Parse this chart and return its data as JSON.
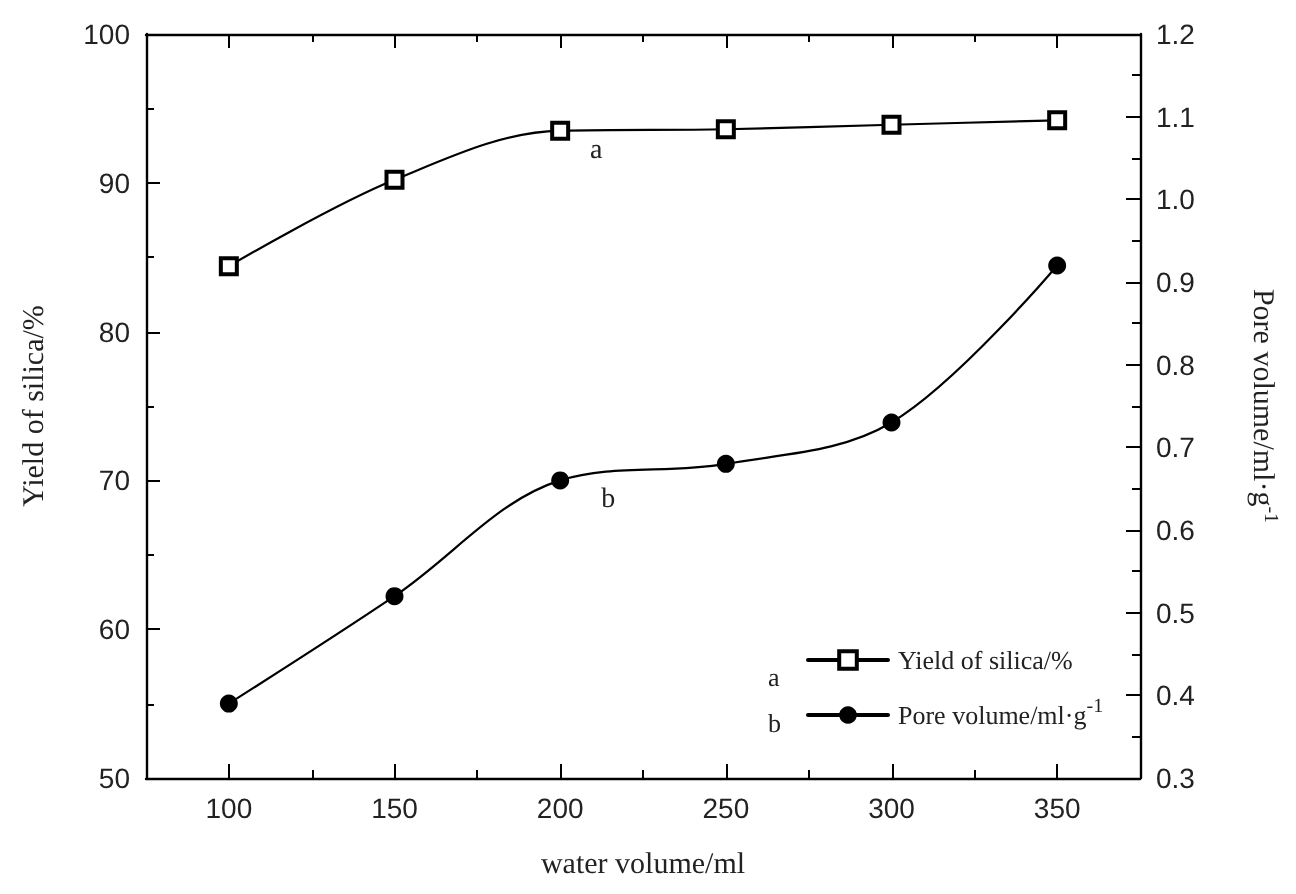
{
  "chart_data": {
    "type": "line",
    "xlabel": "water volume/ml",
    "ylabel": "Yield of silica/%",
    "y2label": "Pore volume/ml·g$^{-1}$",
    "x": [
      100,
      150,
      200,
      250,
      300,
      350
    ],
    "series": [
      {
        "name": "Yield of silica/%",
        "color": "#000000",
        "marker": "square",
        "values": [
          84.4,
          90.2,
          93.5,
          93.6,
          93.9,
          94.2
        ]
      },
      {
        "name": "Pore volume/ml·g$^{-1}$",
        "color": "#000000",
        "marker": "circle",
        "axis": "y2",
        "values": [
          0.39,
          0.52,
          0.66,
          0.68,
          0.73,
          0.92
        ]
      }
    ],
    "annotations": [
      "a",
      "b"
    ],
    "xlim": [
      75,
      375
    ],
    "xticks": [
      100,
      150,
      200,
      250,
      300,
      350
    ],
    "ylim": [
      50,
      100
    ],
    "yticks": [
      50,
      60,
      70,
      80,
      90,
      100
    ],
    "y2lim": [
      0.3,
      1.2
    ],
    "y2ticks": [
      0.3,
      0.4,
      0.5,
      0.6,
      0.7,
      0.8,
      0.9,
      {
        "value": 1.0,
        "label": "1.0"
      },
      1.1,
      1.2
    ],
    "legend": "bottom right",
    "grid": false
  }
}
